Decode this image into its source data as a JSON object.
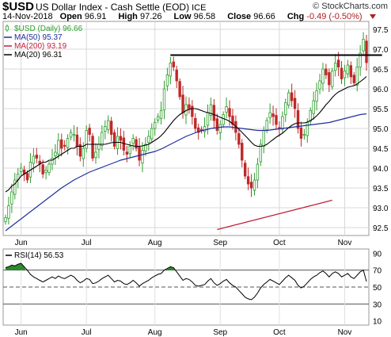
{
  "header": {
    "symbol": "$USD",
    "description": "US Dollar Index - Cash Settle (EOD)",
    "exchange": "ICE",
    "brand": "© StockCharts.com",
    "date": "14-Nov-2018",
    "open_label": "Open",
    "open": "96.91",
    "high_label": "High",
    "high": "97.26",
    "low_label": "Low",
    "low": "96.58",
    "close_label": "Close",
    "close": "96.66",
    "chg_label": "Chg",
    "chg": "-0.49 (-0.50%)"
  },
  "colors": {
    "up_candle": "#2e9e2e",
    "down_candle": "#c02828",
    "ma50": "#1f2e9e",
    "ma200": "#c0203a",
    "ma20": "#000000",
    "rsi_fill": "#2e8a2e"
  },
  "chart_data": [
    {
      "type": "candlestick",
      "legend": [
        {
          "text": "$USD (Daily) 96.66",
          "color": "#2e9e2e",
          "icon": "candle-icon"
        },
        {
          "text": "MA(50) 95.37",
          "color": "#1f2e9e"
        },
        {
          "text": "MA(200) 93.19",
          "color": "#c0203a"
        },
        {
          "text": "MA(20) 96.31",
          "color": "#000000"
        }
      ],
      "y_ticks": [
        "92.5",
        "93.0",
        "93.5",
        "94.0",
        "94.5",
        "95.0",
        "95.5",
        "96.0",
        "96.5",
        "97.0",
        "97.5"
      ],
      "ylim": [
        92.3,
        97.7
      ],
      "x_ticks": [
        "Jun",
        "Jul",
        "Aug",
        "Sep",
        "Oct",
        "Nov"
      ],
      "x_tick_index": [
        5,
        26,
        48,
        69,
        88,
        109
      ],
      "grid": true,
      "resistance_line": {
        "value": 96.85,
        "from_index": 53,
        "to_index": 121
      },
      "close": [
        92.75,
        93.05,
        93.4,
        93.7,
        93.85,
        94.0,
        93.85,
        93.7,
        94.15,
        94.3,
        94.25,
        94.1,
        93.85,
        93.95,
        94.1,
        94.25,
        94.4,
        94.7,
        94.5,
        94.55,
        94.75,
        94.9,
        94.85,
        94.55,
        94.3,
        94.5,
        94.95,
        94.85,
        94.25,
        94.4,
        94.6,
        94.9,
        95.05,
        95.2,
        94.85,
        94.55,
        94.8,
        94.7,
        94.45,
        94.35,
        94.55,
        94.75,
        94.5,
        94.2,
        94.45,
        94.6,
        94.8,
        95.0,
        95.15,
        95.3,
        95.45,
        96.0,
        96.35,
        96.65,
        96.55,
        96.2,
        95.8,
        95.4,
        95.6,
        95.5,
        95.3,
        95.0,
        94.9,
        94.95,
        95.05,
        95.4,
        95.6,
        95.2,
        94.95,
        95.1,
        95.35,
        95.55,
        95.3,
        95.1,
        94.9,
        94.6,
        94.2,
        93.8,
        93.6,
        93.5,
        93.7,
        94.1,
        94.6,
        94.95,
        95.2,
        95.4,
        95.3,
        95.1,
        95.0,
        95.3,
        95.65,
        95.9,
        95.7,
        95.5,
        95.0,
        94.75,
        94.85,
        95.15,
        95.45,
        95.7,
        95.95,
        96.2,
        96.5,
        96.35,
        96.1,
        96.45,
        96.65,
        96.55,
        96.25,
        96.45,
        96.6,
        96.3,
        96.15,
        96.55,
        96.9,
        97.25,
        96.66
      ],
      "ma20": [
        93.4,
        93.45,
        93.55,
        93.6,
        93.7,
        93.8,
        93.85,
        93.9,
        93.95,
        94.0,
        94.05,
        94.1,
        94.15,
        94.15,
        94.2,
        94.2,
        94.25,
        94.3,
        94.35,
        94.4,
        94.45,
        94.5,
        94.5,
        94.55,
        94.55,
        94.55,
        94.6,
        94.6,
        94.6,
        94.6,
        94.6,
        94.6,
        94.6,
        94.62,
        94.64,
        94.65,
        94.65,
        94.65,
        94.62,
        94.6,
        94.58,
        94.56,
        94.55,
        94.55,
        94.56,
        94.58,
        94.6,
        94.65,
        94.7,
        94.75,
        94.82,
        94.9,
        95.0,
        95.1,
        95.2,
        95.28,
        95.35,
        95.4,
        95.45,
        95.48,
        95.5,
        95.5,
        95.48,
        95.45,
        95.42,
        95.4,
        95.38,
        95.35,
        95.32,
        95.28,
        95.25,
        95.22,
        95.18,
        95.12,
        95.05,
        94.98,
        94.9,
        94.82,
        94.74,
        94.65,
        94.58,
        94.55,
        94.55,
        94.56,
        94.6,
        94.66,
        94.72,
        94.78,
        94.83,
        94.88,
        94.95,
        95.02,
        95.08,
        95.12,
        95.14,
        95.14,
        95.14,
        95.16,
        95.2,
        95.25,
        95.32,
        95.4,
        95.5,
        95.6,
        95.68,
        95.78,
        95.86,
        95.92,
        95.96,
        96.0,
        96.04,
        96.06,
        96.08,
        96.12,
        96.18,
        96.24,
        96.31
      ],
      "ma50": [
        92.42,
        92.48,
        92.54,
        92.6,
        92.66,
        92.72,
        92.78,
        92.84,
        92.9,
        92.96,
        93.02,
        93.08,
        93.14,
        93.2,
        93.26,
        93.32,
        93.38,
        93.44,
        93.5,
        93.55,
        93.6,
        93.65,
        93.7,
        93.74,
        93.78,
        93.82,
        93.86,
        93.9,
        93.93,
        93.96,
        93.99,
        94.02,
        94.05,
        94.08,
        94.11,
        94.14,
        94.17,
        94.2,
        94.22,
        94.24,
        94.26,
        94.28,
        94.3,
        94.32,
        94.34,
        94.36,
        94.38,
        94.4,
        94.42,
        94.45,
        94.48,
        94.52,
        94.56,
        94.6,
        94.64,
        94.68,
        94.72,
        94.76,
        94.8,
        94.83,
        94.86,
        94.89,
        94.92,
        94.94,
        94.96,
        94.98,
        95.0,
        95.01,
        95.02,
        95.03,
        95.04,
        95.04,
        95.04,
        95.03,
        95.02,
        95.01,
        95.0,
        94.99,
        94.98,
        94.97,
        94.96,
        94.95,
        94.95,
        94.95,
        94.95,
        94.96,
        94.97,
        94.98,
        94.99,
        95.0,
        95.01,
        95.02,
        95.03,
        95.04,
        95.05,
        95.06,
        95.07,
        95.08,
        95.09,
        95.1,
        95.11,
        95.12,
        95.13,
        95.14,
        95.15,
        95.17,
        95.19,
        95.21,
        95.23,
        95.25,
        95.27,
        95.29,
        95.31,
        95.33,
        95.35,
        95.36,
        95.37
      ],
      "ma200": {
        "from_index": 68,
        "values": [
          92.45,
          92.47,
          92.49,
          92.51,
          92.53,
          92.55,
          92.57,
          92.59,
          92.61,
          92.63,
          92.65,
          92.67,
          92.69,
          92.71,
          92.73,
          92.75,
          92.77,
          92.79,
          92.81,
          92.83,
          92.85,
          92.87,
          92.89,
          92.91,
          92.93,
          92.95,
          92.97,
          92.99,
          93.01,
          93.03,
          93.05,
          93.07,
          93.09,
          93.11,
          93.13,
          93.15,
          93.17,
          93.19
        ]
      }
    },
    {
      "type": "line",
      "title": "RSI(14) 56.53",
      "y_ticks": [
        "10",
        "30",
        "50",
        "70",
        "90"
      ],
      "ylim": [
        5,
        95
      ],
      "reference_lines": [
        30,
        50,
        70
      ],
      "x_ticks": [
        "Jun",
        "Jul",
        "Aug",
        "Sep",
        "Oct",
        "Nov"
      ],
      "values": [
        73,
        74,
        76,
        75,
        77,
        78,
        74,
        70,
        65,
        62,
        60,
        58,
        56,
        58,
        60,
        62,
        60,
        63,
        61,
        60,
        62,
        64,
        62,
        58,
        55,
        57,
        60,
        59,
        54,
        55,
        57,
        60,
        62,
        64,
        60,
        56,
        58,
        57,
        54,
        53,
        55,
        58,
        55,
        51,
        54,
        56,
        58,
        61,
        63,
        65,
        66,
        70,
        72,
        74,
        73,
        68,
        63,
        58,
        60,
        59,
        56,
        52,
        51,
        52,
        53,
        57,
        60,
        55,
        52,
        54,
        57,
        59,
        55,
        52,
        50,
        46,
        42,
        38,
        36,
        35,
        38,
        43,
        49,
        53,
        56,
        59,
        57,
        55,
        53,
        57,
        61,
        64,
        61,
        58,
        52,
        49,
        51,
        55,
        59,
        62,
        64,
        67,
        69,
        66,
        62,
        66,
        68,
        66,
        62,
        64,
        66,
        62,
        60,
        64,
        68,
        70,
        56.53
      ]
    }
  ]
}
